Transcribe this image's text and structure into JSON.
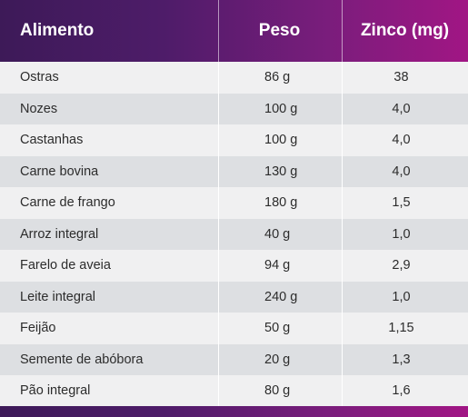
{
  "table": {
    "headers": {
      "food": "Alimento",
      "weight": "Peso",
      "zinc": "Zinco (mg)"
    },
    "rows": [
      {
        "food": "Ostras",
        "weight": "86 g",
        "zinc": "38"
      },
      {
        "food": "Nozes",
        "weight": "100 g",
        "zinc": "4,0"
      },
      {
        "food": "Castanhas",
        "weight": "100 g",
        "zinc": "4,0"
      },
      {
        "food": "Carne bovina",
        "weight": "130 g",
        "zinc": "4,0"
      },
      {
        "food": "Carne de frango",
        "weight": "180 g",
        "zinc": "1,5"
      },
      {
        "food": "Arroz integral",
        "weight": "40 g",
        "zinc": "1,0"
      },
      {
        "food": "Farelo de aveia",
        "weight": "94 g",
        "zinc": "2,9"
      },
      {
        "food": "Leite integral",
        "weight": "240 g",
        "zinc": "1,0"
      },
      {
        "food": "Feijão",
        "weight": "50 g",
        "zinc": "1,15"
      },
      {
        "food": "Semente de abóbora",
        "weight": "20 g",
        "zinc": "1,3"
      },
      {
        "food": "Pão integral",
        "weight": "80 g",
        "zinc": "1,6"
      }
    ]
  },
  "colors": {
    "header_gradient_start": "#3d1a58",
    "header_gradient_end": "#a11684",
    "row_light": "#f0f0f1",
    "row_dark": "#dddfe2",
    "text": "#2c2c2c"
  }
}
